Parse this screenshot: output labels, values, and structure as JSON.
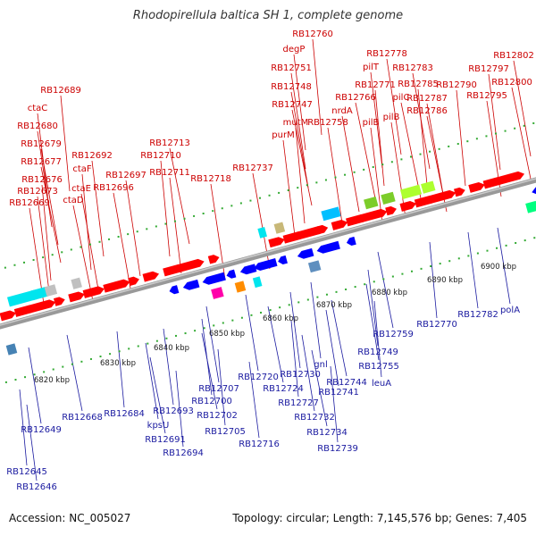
{
  "title": "Rhodopirellula baltica SH 1, complete genome",
  "footer": {
    "accession": "Accession: NC_005027",
    "summary": "Topology: circular; Length: 7,145,576 bp; Genes: 7,405"
  },
  "kbp_ticks": [
    "6820 kbp",
    "6830 kbp",
    "6840 kbp",
    "6850 kbp",
    "6860 kbp",
    "6870 kbp",
    "6880 kbp",
    "6890 kbp",
    "6900 kbp"
  ],
  "top_labels": [
    "RB12760",
    "degP",
    "RB12751",
    "RB12748",
    "RB12747",
    "mutM",
    "purM",
    "RB12758",
    "nrdA",
    "RB12766",
    "RB12771",
    "pilT",
    "RB12778",
    "RB12783",
    "pilC",
    "RB12785",
    "pilB",
    "pilB",
    "RB12787",
    "RB12786",
    "RB12790",
    "RB12797",
    "RB12795",
    "RB12802",
    "RB12800",
    "RB12689",
    "ctaC",
    "RB12680",
    "RB12679",
    "RB12677",
    "RB12676",
    "RB12673",
    "RB12669",
    "ctaE",
    "ctaD",
    "ctaF",
    "RB12692",
    "RB12697",
    "RB12696",
    "RB12713",
    "RB12710",
    "RB12711",
    "RB12718",
    "RB12737"
  ],
  "bottom_labels": [
    "RB12645",
    "RB12646",
    "RB12649",
    "RB12668",
    "RB12684",
    "RB12693",
    "kpsU",
    "RB12691",
    "RB12694",
    "RB12700",
    "RB12707",
    "RB12702",
    "RB12705",
    "RB12716",
    "RB12720",
    "RB12724",
    "RB12727",
    "RB12730",
    "RB12732",
    "RB12734",
    "RB12739",
    "gnl",
    "RB12741",
    "RB12744",
    "leuA",
    "RB12749",
    "RB12755",
    "RB12759",
    "RB12770",
    "RB12782",
    "polA"
  ],
  "colors": {
    "forward": "#ff0000",
    "reverse": "#0000ff",
    "backbone": "#999999",
    "tick": "#33aa33",
    "top_label": "#cc0000",
    "bottom_label": "#1a1aa0"
  }
}
